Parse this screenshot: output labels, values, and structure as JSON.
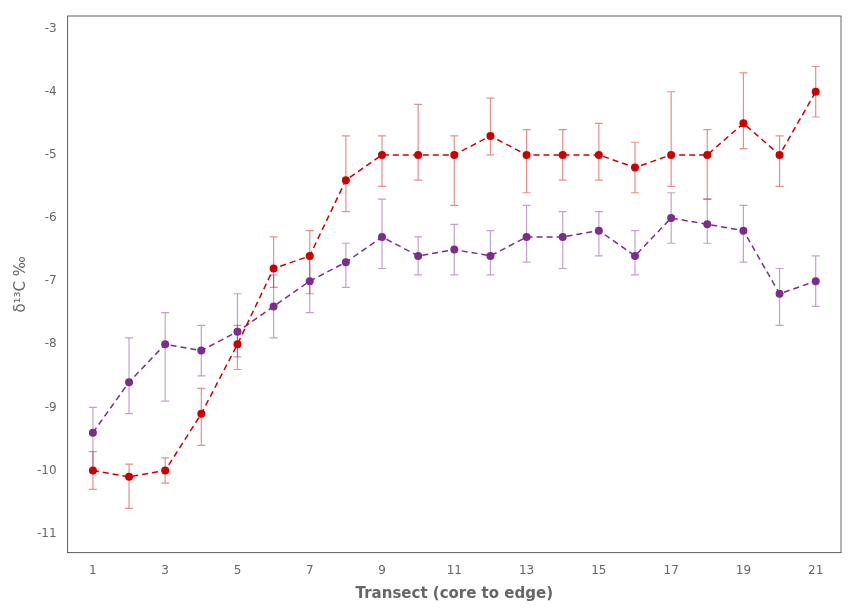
{
  "chart_data": {
    "type": "line",
    "x": [
      1,
      2,
      3,
      4,
      5,
      6,
      7,
      8,
      9,
      10,
      11,
      12,
      13,
      14,
      15,
      16,
      17,
      18,
      19,
      20,
      21
    ],
    "series": [
      {
        "color": "#7b2d8b",
        "marker": "circle",
        "line_style": "dashed",
        "values": [
          -9.4,
          -8.6,
          -8.0,
          -8.1,
          -7.8,
          -7.4,
          -7.0,
          -6.7,
          -6.3,
          -6.6,
          -6.5,
          -6.6,
          -6.3,
          -6.3,
          -6.2,
          -6.6,
          -6.0,
          -6.1,
          -6.2,
          -7.2,
          -7.0
        ],
        "yerr_lo": [
          0.6,
          0.5,
          0.9,
          0.4,
          0.4,
          0.5,
          0.5,
          0.4,
          0.5,
          0.3,
          0.4,
          0.3,
          0.4,
          0.5,
          0.4,
          0.3,
          0.4,
          0.3,
          0.5,
          0.5,
          0.4
        ],
        "yerr_hi": [
          0.4,
          0.7,
          0.5,
          0.4,
          0.6,
          0.5,
          0.4,
          0.3,
          0.6,
          0.3,
          0.4,
          0.4,
          0.5,
          0.4,
          0.3,
          0.4,
          0.4,
          0.4,
          0.4,
          0.4,
          0.4
        ]
      },
      {
        "color": "#cc0000",
        "marker": "circle",
        "line_style": "dashed",
        "values": [
          -10.0,
          -10.1,
          -10.0,
          -9.1,
          -8.0,
          -6.8,
          -6.6,
          -5.4,
          -5.0,
          -5.0,
          -5.0,
          -4.7,
          -5.0,
          -5.0,
          -5.0,
          -5.2,
          -5.0,
          -5.0,
          -4.5,
          -5.0,
          -4.0
        ],
        "yerr_lo": [
          0.3,
          0.5,
          0.2,
          0.5,
          0.4,
          0.3,
          0.6,
          0.5,
          0.5,
          0.4,
          0.8,
          0.3,
          0.6,
          0.4,
          0.4,
          0.4,
          0.5,
          0.7,
          0.4,
          0.5,
          0.4
        ],
        "yerr_hi": [
          0.3,
          0.2,
          0.2,
          0.4,
          0.3,
          0.5,
          0.4,
          0.7,
          0.3,
          0.8,
          0.3,
          0.6,
          0.4,
          0.4,
          0.5,
          0.4,
          1.0,
          0.4,
          0.8,
          0.3,
          0.4
        ]
      }
    ],
    "x_label": "Transect (core to edge)",
    "y_label": "δ¹³C ‰",
    "xlim": [
      0.3,
      21.7
    ],
    "ylim": [
      -11.3,
      -2.8
    ],
    "xticks": [
      1,
      3,
      5,
      7,
      9,
      11,
      13,
      15,
      17,
      19,
      21
    ],
    "yticks": [
      -11,
      -10,
      -9,
      -8,
      -7,
      -6,
      -5,
      -4,
      -3
    ],
    "grid": false
  }
}
